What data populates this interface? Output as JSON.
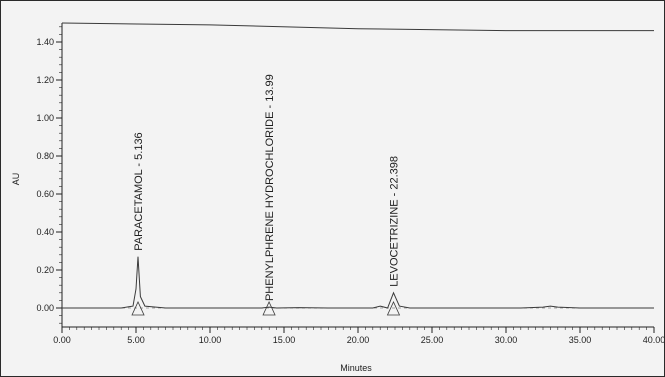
{
  "chart_data": {
    "type": "line",
    "title": "",
    "xlabel": "Minutes",
    "ylabel": "AU",
    "xlim": [
      0,
      40
    ],
    "ylim": [
      -0.1,
      1.5
    ],
    "x_ticks": [
      0,
      5,
      10,
      15,
      20,
      25,
      30,
      35,
      40
    ],
    "x_tick_labels": [
      "0.00",
      "5.00",
      "10.00",
      "15.00",
      "20.00",
      "25.00",
      "30.00",
      "35.00",
      "40.00"
    ],
    "y_ticks": [
      0,
      0.2,
      0.4,
      0.6,
      0.8,
      1.0,
      1.2,
      1.4
    ],
    "y_tick_labels": [
      "0.00",
      "0.20",
      "0.40",
      "0.60",
      "0.80",
      "1.00",
      "1.20",
      "1.40"
    ],
    "grid": false,
    "series": [
      {
        "x": [
          0,
          2,
          4,
          4.8,
          5.0,
          5.136,
          5.3,
          5.6,
          7,
          10,
          13.5,
          13.99,
          14.5,
          16,
          18,
          21,
          21.5,
          22,
          22.398,
          22.8,
          23.5,
          27,
          31,
          32.5,
          33,
          33.5,
          35,
          38,
          40
        ],
        "y": [
          0.0,
          0.0,
          0.0,
          0.01,
          0.1,
          0.27,
          0.06,
          0.01,
          0.0,
          0.0,
          0.0,
          0.005,
          0.0,
          0.002,
          0.0,
          0.0,
          0.01,
          0.0,
          0.08,
          0.01,
          0.0,
          0.0,
          0.0,
          0.005,
          0.01,
          0.005,
          0.0,
          0.0,
          0.0
        ]
      },
      {
        "x": [
          0,
          10,
          20,
          30,
          40
        ],
        "y": [
          1.5,
          1.49,
          1.47,
          1.46,
          1.46
        ]
      }
    ],
    "peaks": [
      {
        "label": "PARACETAMOL - 5.136",
        "rt": 5.136,
        "height": 0.27
      },
      {
        "label": "PHENYLPHRENE HYDROCHLORIDE - 13.99",
        "rt": 13.99,
        "height": 0.005
      },
      {
        "label": "LEVOCETRIZINE - 22.398",
        "rt": 22.398,
        "height": 0.08
      }
    ]
  },
  "colors": {
    "trace": "#3a3a3a",
    "axis": "#222222",
    "background": "#f3f3f3"
  }
}
